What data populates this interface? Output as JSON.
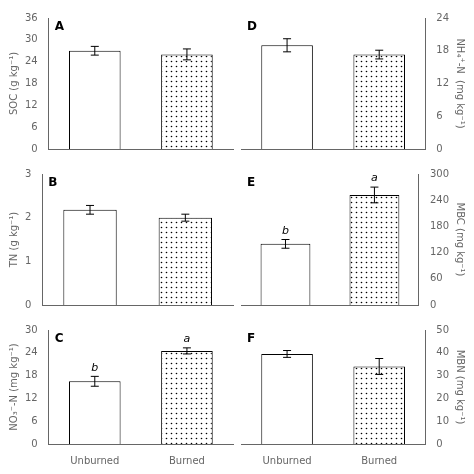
{
  "chart_data": [
    {
      "type": "bar",
      "title": "A",
      "categories": [
        "Unburned",
        "Burned"
      ],
      "values": [
        27.0,
        26.0
      ],
      "errors": [
        1.2,
        1.5
      ],
      "y_label": "SOC (g kg⁻¹)",
      "ylim": [
        0,
        36
      ],
      "yticks": [
        0,
        6,
        12,
        18,
        24,
        30,
        36
      ],
      "grid": false,
      "tick_labels": "y"
    },
    {
      "type": "bar",
      "title": "B",
      "categories": [
        "Unburned",
        "Burned"
      ],
      "values": [
        2.18,
        2.0
      ],
      "errors": [
        0.1,
        0.08
      ],
      "y_label": "TN (g kg⁻¹)",
      "ylim": [
        0,
        3
      ],
      "yticks": [
        0,
        1,
        2,
        3
      ],
      "grid": false,
      "tick_labels": "y"
    },
    {
      "type": "bar",
      "title": "C",
      "categories": [
        "Unburned",
        "Burned"
      ],
      "values": [
        16.5,
        24.5
      ],
      "errors": [
        1.3,
        0.8
      ],
      "annotations": [
        "b",
        "a"
      ],
      "y_label": "NO₃⁻-N (mg kg⁻¹)",
      "ylim": [
        0,
        30
      ],
      "yticks": [
        0,
        6,
        12,
        18,
        24,
        30
      ],
      "grid": false
    },
    {
      "type": "bar",
      "title": "D",
      "categories": [
        "Unburned",
        "Burned"
      ],
      "values": [
        19.0,
        17.3
      ],
      "errors": [
        1.2,
        0.8
      ],
      "y_label": "NH₄⁺-N  (mg kg⁻¹)",
      "ylim": [
        0,
        24
      ],
      "yticks": [
        0,
        6,
        12,
        18,
        24
      ],
      "grid": false,
      "tick_labels": "y"
    },
    {
      "type": "bar",
      "title": "E",
      "categories": [
        "Unburned",
        "Burned"
      ],
      "values": [
        140,
        252
      ],
      "errors": [
        10,
        18
      ],
      "annotations": [
        "b",
        "a"
      ],
      "y_label": "MBC (mg kg⁻¹)",
      "ylim": [
        0,
        300
      ],
      "yticks": [
        0,
        60,
        120,
        180,
        240,
        300
      ],
      "grid": false,
      "tick_labels": "y"
    },
    {
      "type": "bar",
      "title": "F",
      "categories": [
        "Unburned",
        "Burned"
      ],
      "values": [
        39.5,
        34.0
      ],
      "errors": [
        1.5,
        3.5
      ],
      "y_label": "MBN (mg kg⁻¹)",
      "ylim": [
        0,
        50
      ],
      "yticks": [
        0,
        10,
        20,
        30,
        40,
        50
      ],
      "grid": false
    }
  ]
}
